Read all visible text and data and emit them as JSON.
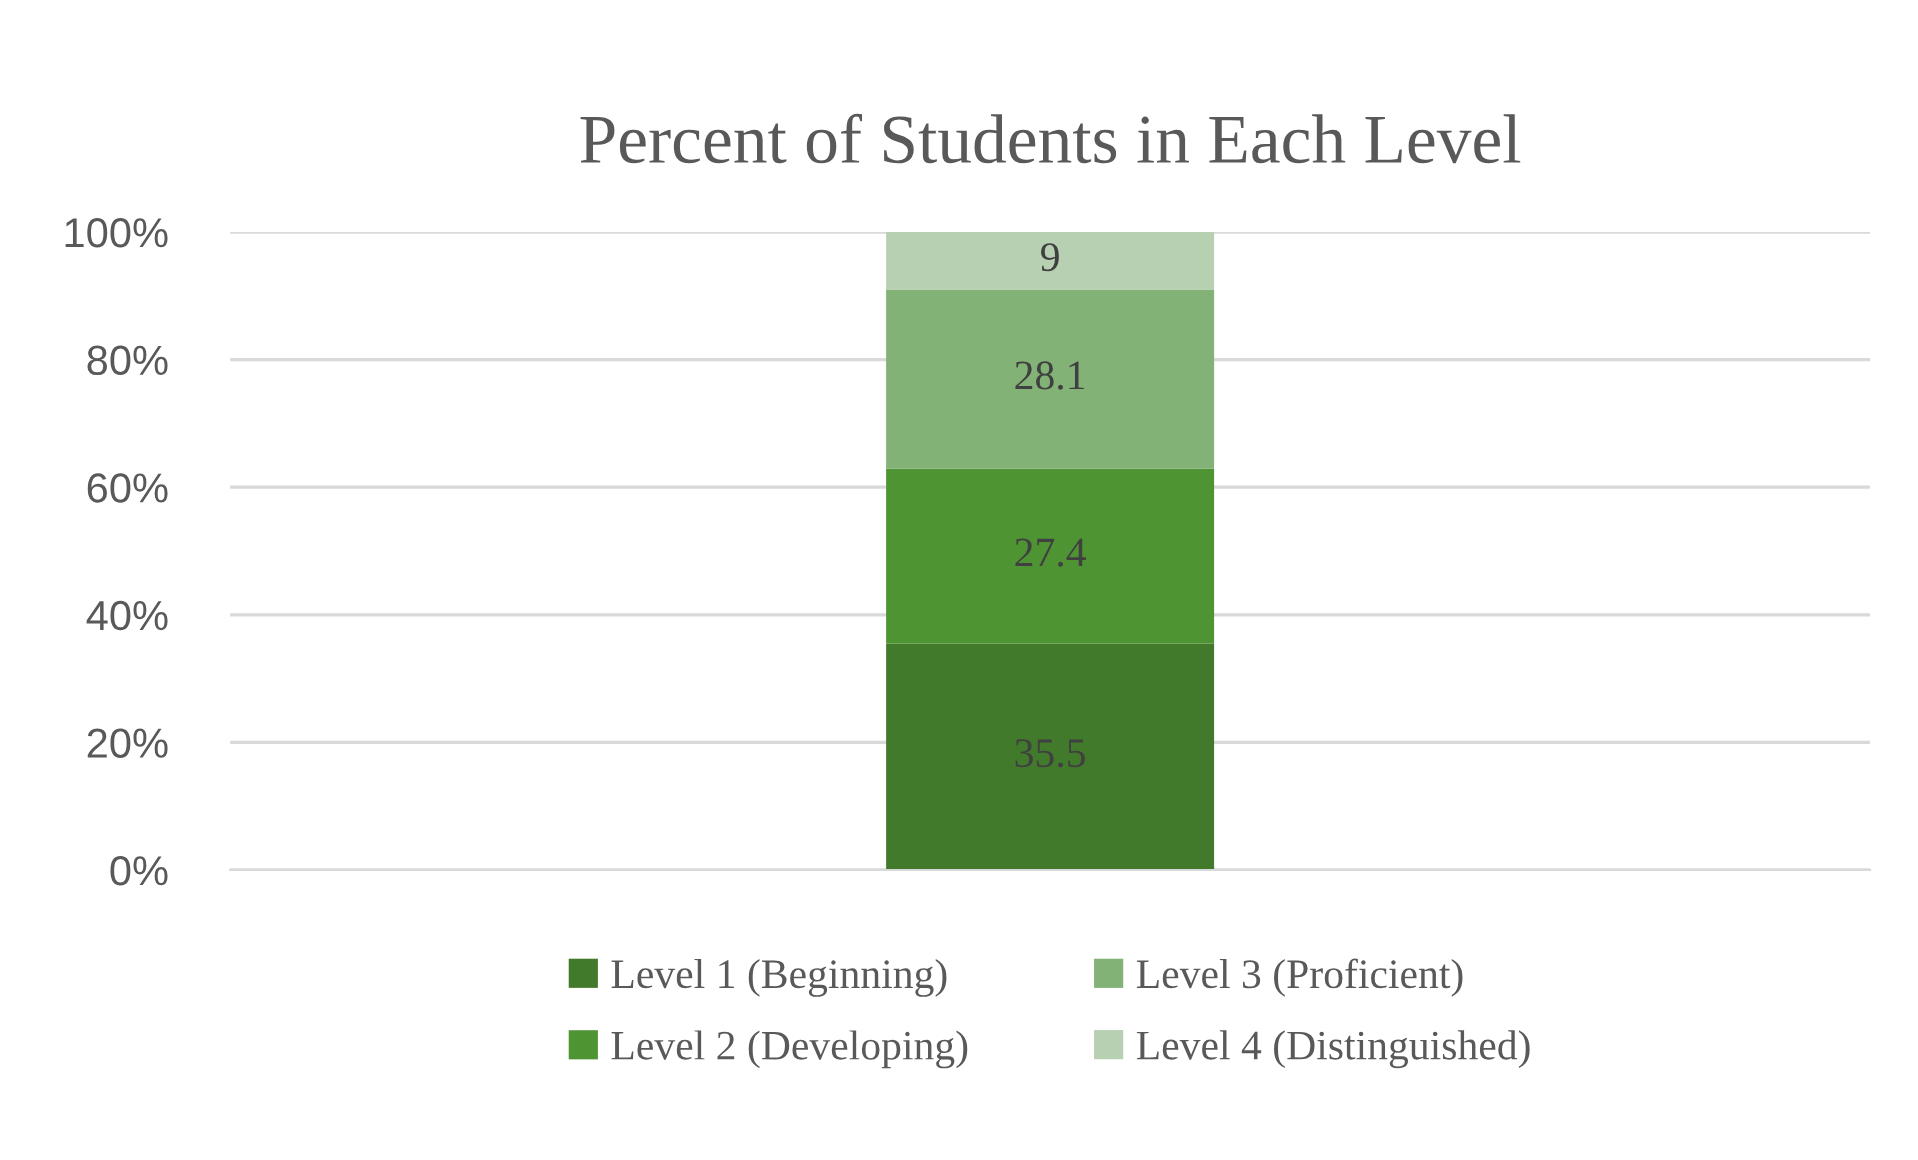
{
  "chart_data": {
    "type": "bar",
    "title": "Percent of Students in Each Level",
    "stacked": true,
    "categories": [
      null
    ],
    "series": [
      {
        "name": "Level 1 (Beginning)",
        "color": "#427a2c",
        "values": [
          35.5
        ]
      },
      {
        "name": "Level 2 (Developing)",
        "color": "#4e9433",
        "values": [
          27.4
        ]
      },
      {
        "name": "Level 3 (Proficient)",
        "color": "#82b275",
        "values": [
          28.1
        ]
      },
      {
        "name": "Level 4 (Distinguished)",
        "color": "#b8d0b2",
        "values": [
          9
        ]
      }
    ],
    "ylim": [
      0,
      100
    ],
    "yticks": [
      {
        "value": 0,
        "label": "0%"
      },
      {
        "value": 20,
        "label": "20%"
      },
      {
        "value": 40,
        "label": "40%"
      },
      {
        "value": 60,
        "label": "60%"
      },
      {
        "value": 80,
        "label": "80%"
      },
      {
        "value": 100,
        "label": "100%"
      }
    ],
    "grid": "y",
    "legend": "bottom",
    "data_labels": true
  }
}
